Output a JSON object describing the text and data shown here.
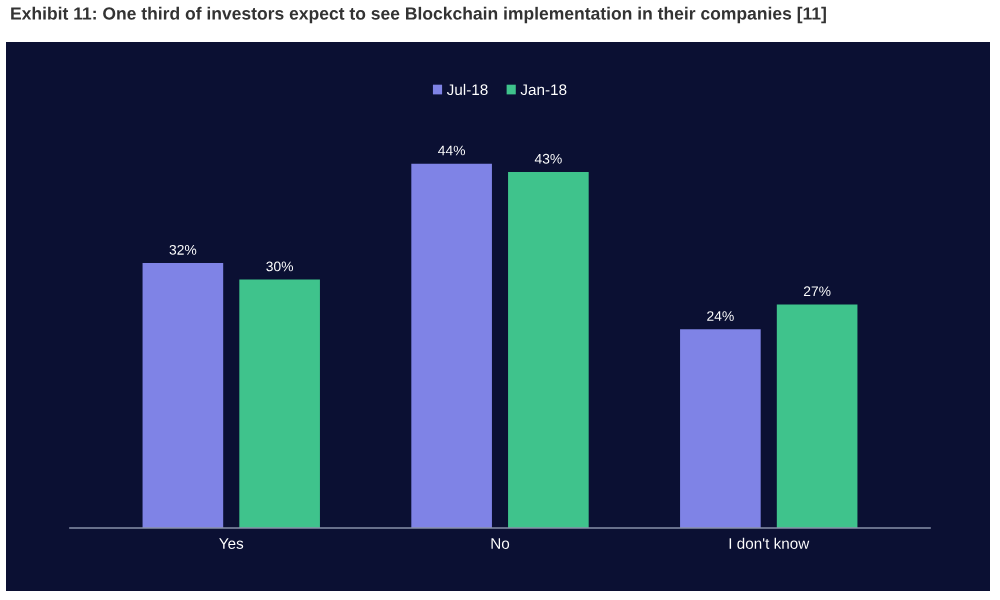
{
  "chart_data": {
    "type": "bar",
    "title": "Exhibit 11: One third of investors expect to see Blockchain implementation in their companies [11]",
    "categories": [
      "Yes",
      "No",
      "I don't know"
    ],
    "series": [
      {
        "name": "Jul-18",
        "color": "#7f83e6",
        "values": [
          32,
          44,
          24
        ],
        "value_labels": [
          "32%",
          "44%",
          "24%"
        ]
      },
      {
        "name": "Jan-18",
        "color": "#3fc38c",
        "values": [
          30,
          43,
          27
        ],
        "value_labels": [
          "30%",
          "43%",
          "27%"
        ]
      }
    ],
    "legend": "top",
    "tick_labels": "x"
  }
}
